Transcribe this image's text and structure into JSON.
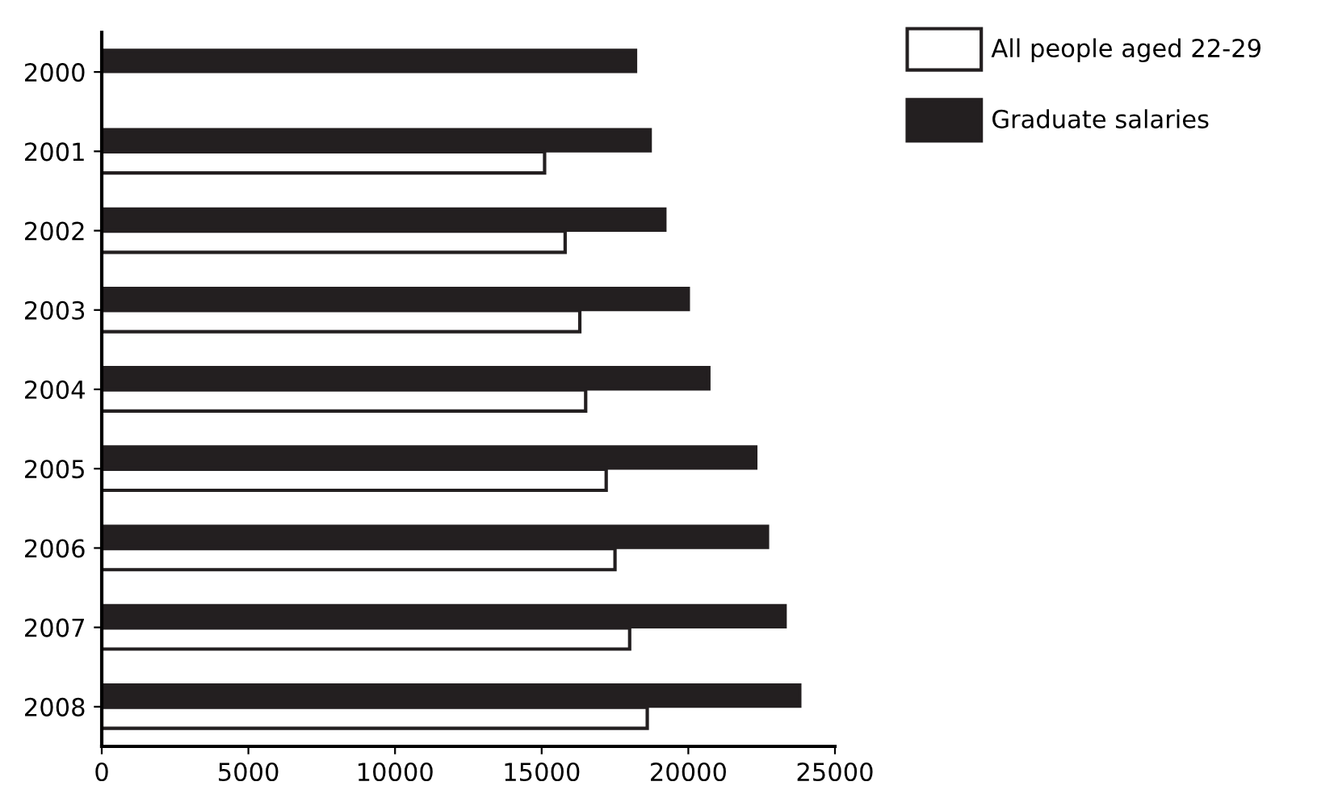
{
  "chart_data": {
    "type": "bar",
    "orientation": "horizontal",
    "categories": [
      "2000",
      "2001",
      "2002",
      "2003",
      "2004",
      "2005",
      "2006",
      "2007",
      "2008"
    ],
    "series": [
      {
        "name": "All people aged 22-29",
        "color": "#ffffff",
        "values": [
          null,
          15100,
          15800,
          16300,
          16500,
          17200,
          17500,
          18000,
          18600
        ]
      },
      {
        "name": "Graduate salaries",
        "color": "#231f20",
        "values": [
          18200,
          18700,
          19200,
          20000,
          20700,
          22300,
          22700,
          23300,
          23800
        ]
      }
    ],
    "xlim": [
      0,
      25000
    ],
    "xticks": [
      0,
      5000,
      10000,
      15000,
      20000,
      25000
    ],
    "grid": false,
    "legend": "top right"
  }
}
